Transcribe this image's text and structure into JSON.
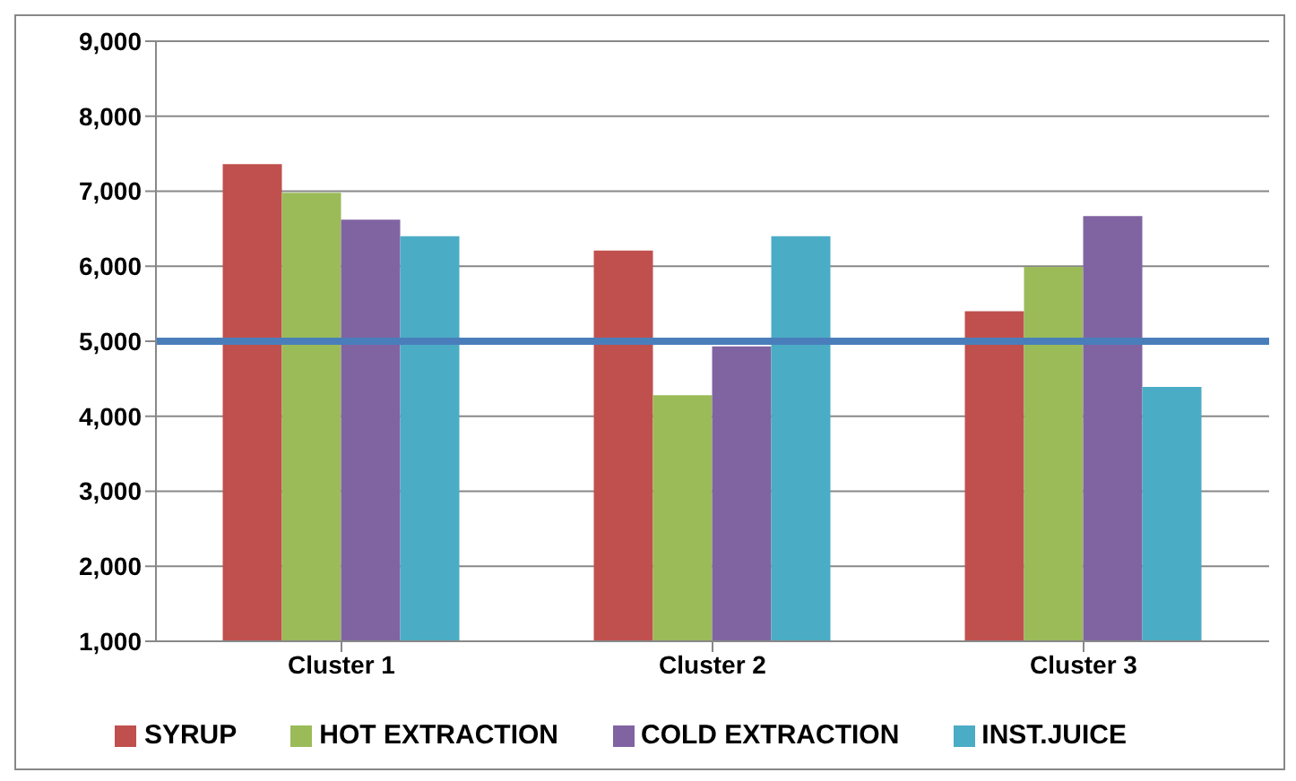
{
  "chart_data": {
    "type": "bar",
    "categories": [
      "Cluster 1",
      "Cluster 2",
      "Cluster 3"
    ],
    "series": [
      {
        "name": "SYRUP",
        "color": "#c0504d",
        "values": [
          7360,
          6210,
          5400
        ]
      },
      {
        "name": "HOT EXTRACTION",
        "color": "#9bbb59",
        "values": [
          6980,
          4280,
          5990
        ]
      },
      {
        "name": "COLD EXTRACTION",
        "color": "#8064a2",
        "values": [
          6620,
          4930,
          6670
        ]
      },
      {
        "name": "INST.JUICE",
        "color": "#4bacc6",
        "values": [
          6400,
          6400,
          4390
        ]
      }
    ],
    "ylim": [
      1000,
      9000
    ],
    "yticks": [
      {
        "value": 1000,
        "label": "1,000"
      },
      {
        "value": 2000,
        "label": "2,000"
      },
      {
        "value": 3000,
        "label": "3,000"
      },
      {
        "value": 4000,
        "label": "4,000"
      },
      {
        "value": 5000,
        "label": "5,000"
      },
      {
        "value": 6000,
        "label": "6,000"
      },
      {
        "value": 7000,
        "label": "7,000"
      },
      {
        "value": 8000,
        "label": "8,000"
      },
      {
        "value": 9000,
        "label": "9,000"
      }
    ],
    "ref_lines": [
      {
        "axis": "y",
        "value": 5000,
        "color": "#4a7ebb"
      }
    ],
    "grid": "y",
    "legend": "bottom"
  }
}
